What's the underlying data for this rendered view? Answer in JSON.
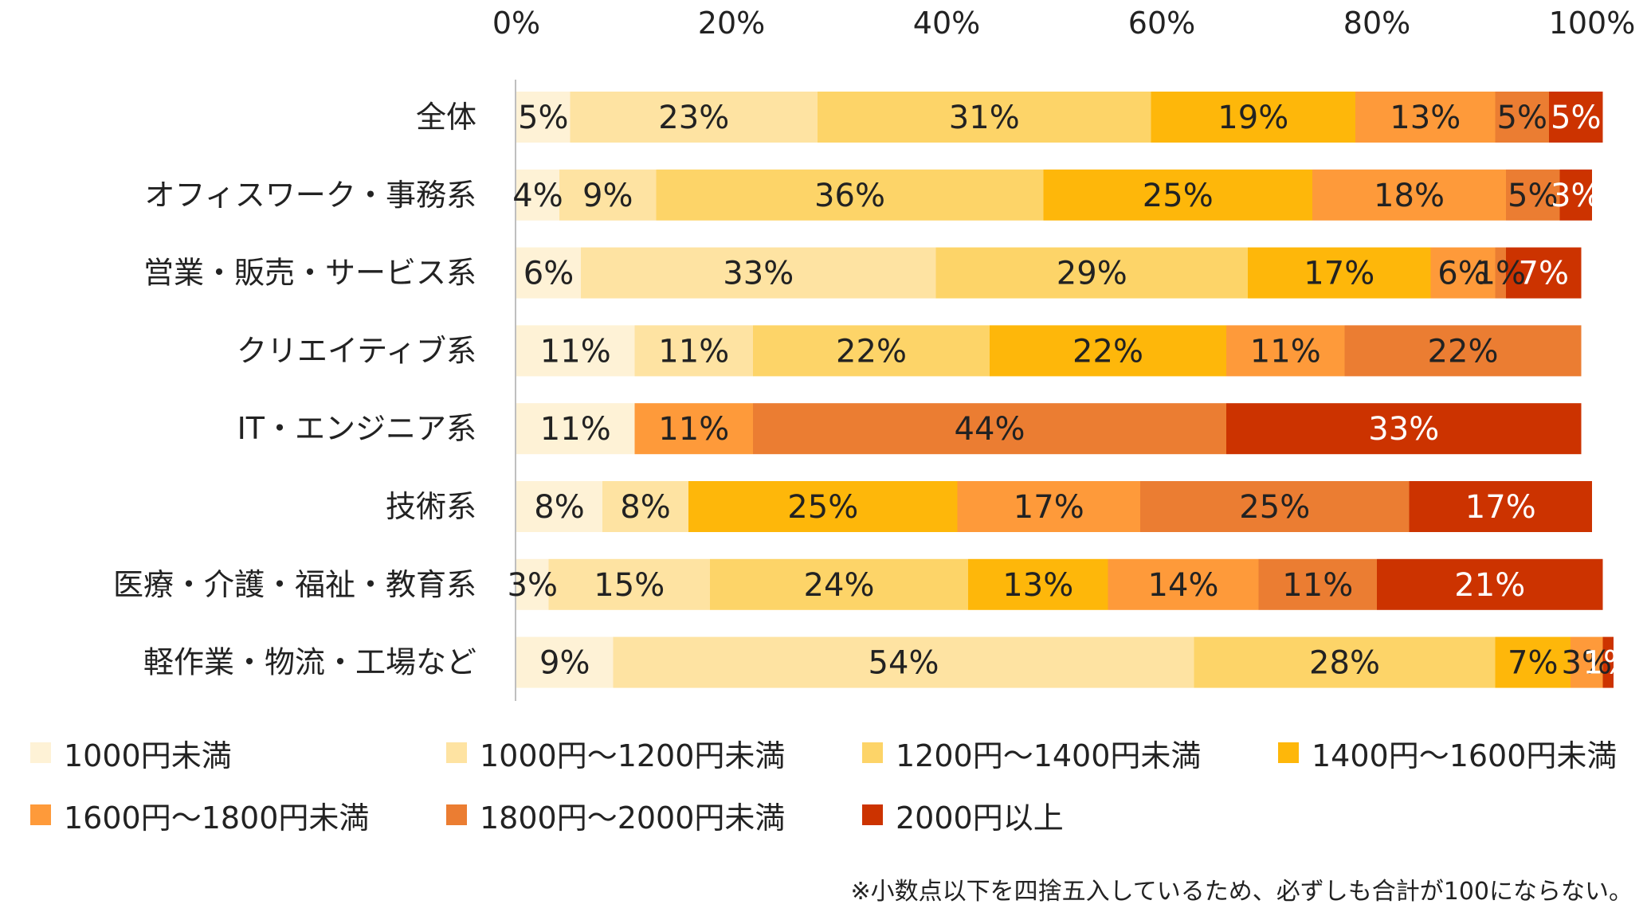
{
  "chart_data": {
    "type": "bar",
    "orientation": "horizontal",
    "stacked": "percent",
    "x_ticks": [
      "0%",
      "20%",
      "40%",
      "60%",
      "80%",
      "100%"
    ],
    "xlim": [
      0,
      100
    ],
    "legend_position": "bottom",
    "categories": [
      "全体",
      "オフィスワーク・事務系",
      "営業・販売・サービス系",
      "クリエイティブ系",
      "IT・エンジニア系",
      "技術系",
      "医療・介護・福祉・教育系",
      "軽作業・物流・工場など"
    ],
    "series": [
      {
        "name": "1000円未満",
        "color": "#FEF2D6",
        "values": [
          5,
          4,
          6,
          11,
          11,
          8,
          3,
          9
        ],
        "labels": [
          "5%",
          "4%",
          "6%",
          "11%",
          "11%",
          "8%",
          "3%",
          "9%"
        ],
        "label_color": "#222222"
      },
      {
        "name": "1000円～1200円未満",
        "color": "#FEE3A2",
        "values": [
          23,
          9,
          33,
          11,
          0,
          8,
          15,
          54
        ],
        "labels": [
          "23%",
          "9%",
          "33%",
          "11%",
          "",
          "8%",
          "15%",
          "54%"
        ],
        "label_color": "#222222"
      },
      {
        "name": "1200円～1400円未満",
        "color": "#FDD468",
        "values": [
          31,
          36,
          29,
          22,
          0,
          0,
          24,
          28
        ],
        "labels": [
          "31%",
          "36%",
          "29%",
          "22%",
          "",
          "",
          "24%",
          "28%"
        ],
        "label_color": "#222222"
      },
      {
        "name": "1400円～1600円未満",
        "color": "#FEB70A",
        "values": [
          19,
          25,
          17,
          22,
          0,
          25,
          13,
          7
        ],
        "labels": [
          "19%",
          "25%",
          "17%",
          "22%",
          "",
          "25%",
          "13%",
          "7%"
        ],
        "label_color": "#222222"
      },
      {
        "name": "1600円～1800円未満",
        "color": "#FE9A3A",
        "values": [
          13,
          18,
          6,
          11,
          11,
          17,
          14,
          3
        ],
        "labels": [
          "13%",
          "18%",
          "6%",
          "11%",
          "11%",
          "17%",
          "14%",
          "3%"
        ],
        "label_color": "#222222"
      },
      {
        "name": "1800円～2000円未満",
        "color": "#EB7D32",
        "values": [
          5,
          5,
          1,
          22,
          44,
          25,
          11,
          0
        ],
        "labels": [
          "5%",
          "5%",
          "1%",
          "22%",
          "44%",
          "25%",
          "11%",
          ""
        ],
        "label_color": "#222222"
      },
      {
        "name": "2000円以上",
        "color": "#CC3300",
        "values": [
          5,
          3,
          7,
          0,
          33,
          17,
          21,
          1
        ],
        "labels": [
          "5%",
          "3%",
          "7%",
          "",
          "33%",
          "17%",
          "21%",
          "1%"
        ],
        "label_color": "#ffffff"
      }
    ],
    "note": "※小数点以下を四捨五入しているため、必ずしも合計が100にならない。"
  }
}
